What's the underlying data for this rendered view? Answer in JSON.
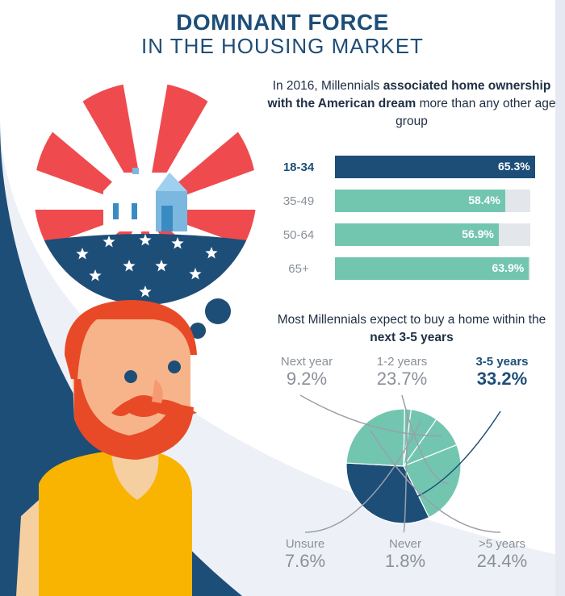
{
  "title": {
    "line1": "DOMINANT FORCE",
    "line2": "IN THE HOUSING MARKET"
  },
  "intro": {
    "pre": "In 2016, Millennials ",
    "bold": "associated home ownership with the American dream",
    "post": " more than any other age group"
  },
  "question": {
    "pre": "Most Millennials expect to buy a home within the ",
    "bold": "next 3-5 years"
  },
  "colors": {
    "navy": "#1d4e78",
    "teal": "#72c6b0",
    "track": "#e3e6eb",
    "red": "#ef4b4f",
    "orange": "#f1582f",
    "yellow": "#f8b400"
  },
  "chart_data": [
    {
      "type": "bar",
      "orientation": "horizontal",
      "categories": [
        "18-34",
        "35-49",
        "50-64",
        "65+"
      ],
      "values": [
        65.3,
        58.4,
        56.9,
        63.9
      ],
      "value_labels": [
        "65.3%",
        "58.4%",
        "56.9%",
        "63.9%"
      ],
      "highlight": "18-34",
      "xlim": [
        0,
        100
      ],
      "title": ""
    },
    {
      "type": "pie",
      "labels": [
        "Next year",
        "1-2 years",
        "3-5 years",
        ">5 years",
        "Never",
        "Unsure"
      ],
      "values": [
        9.2,
        23.7,
        33.2,
        24.4,
        1.8,
        7.6
      ],
      "value_labels": [
        "9.2%",
        "23.7%",
        "33.2%",
        "24.4%",
        "1.8%",
        "7.6%"
      ],
      "highlight": "3-5 years"
    }
  ],
  "illustration": {
    "icons": [
      "house-icon",
      "star-icon",
      "thought-bubble-icon",
      "man-icon"
    ]
  }
}
